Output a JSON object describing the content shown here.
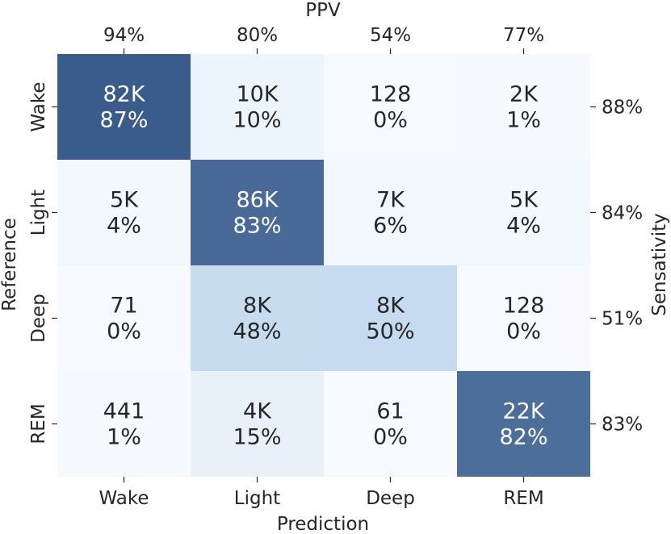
{
  "chart_data": {
    "type": "heatmap",
    "xlabel": "Prediction",
    "ylabel": "Reference",
    "top_label": "PPV",
    "right_label": "Sensativity",
    "columns": [
      "Wake",
      "Light",
      "Deep",
      "REM"
    ],
    "rows": [
      "Wake",
      "Light",
      "Deep",
      "REM"
    ],
    "ppv": [
      "94%",
      "80%",
      "54%",
      "77%"
    ],
    "sensitivity": [
      "88%",
      "84%",
      "51%",
      "83%"
    ],
    "counts": [
      [
        "82K",
        "10K",
        "128",
        "2K"
      ],
      [
        "5K",
        "86K",
        "7K",
        "5K"
      ],
      [
        "71",
        "8K",
        "8K",
        "128"
      ],
      [
        "441",
        "4K",
        "61",
        "22K"
      ]
    ],
    "percents": [
      [
        "87%",
        "10%",
        "0%",
        "1%"
      ],
      [
        "4%",
        "83%",
        "6%",
        "4%"
      ],
      [
        "0%",
        "48%",
        "50%",
        "0%"
      ],
      [
        "1%",
        "15%",
        "0%",
        "82%"
      ]
    ],
    "color_scale": "Blues",
    "colors": {
      "low": "#f7fbff",
      "mid": "#c6dbef",
      "high": "#08306b",
      "text_dark": "#262626",
      "text_light": "#ffffff"
    },
    "grid": false,
    "legend": "none"
  }
}
